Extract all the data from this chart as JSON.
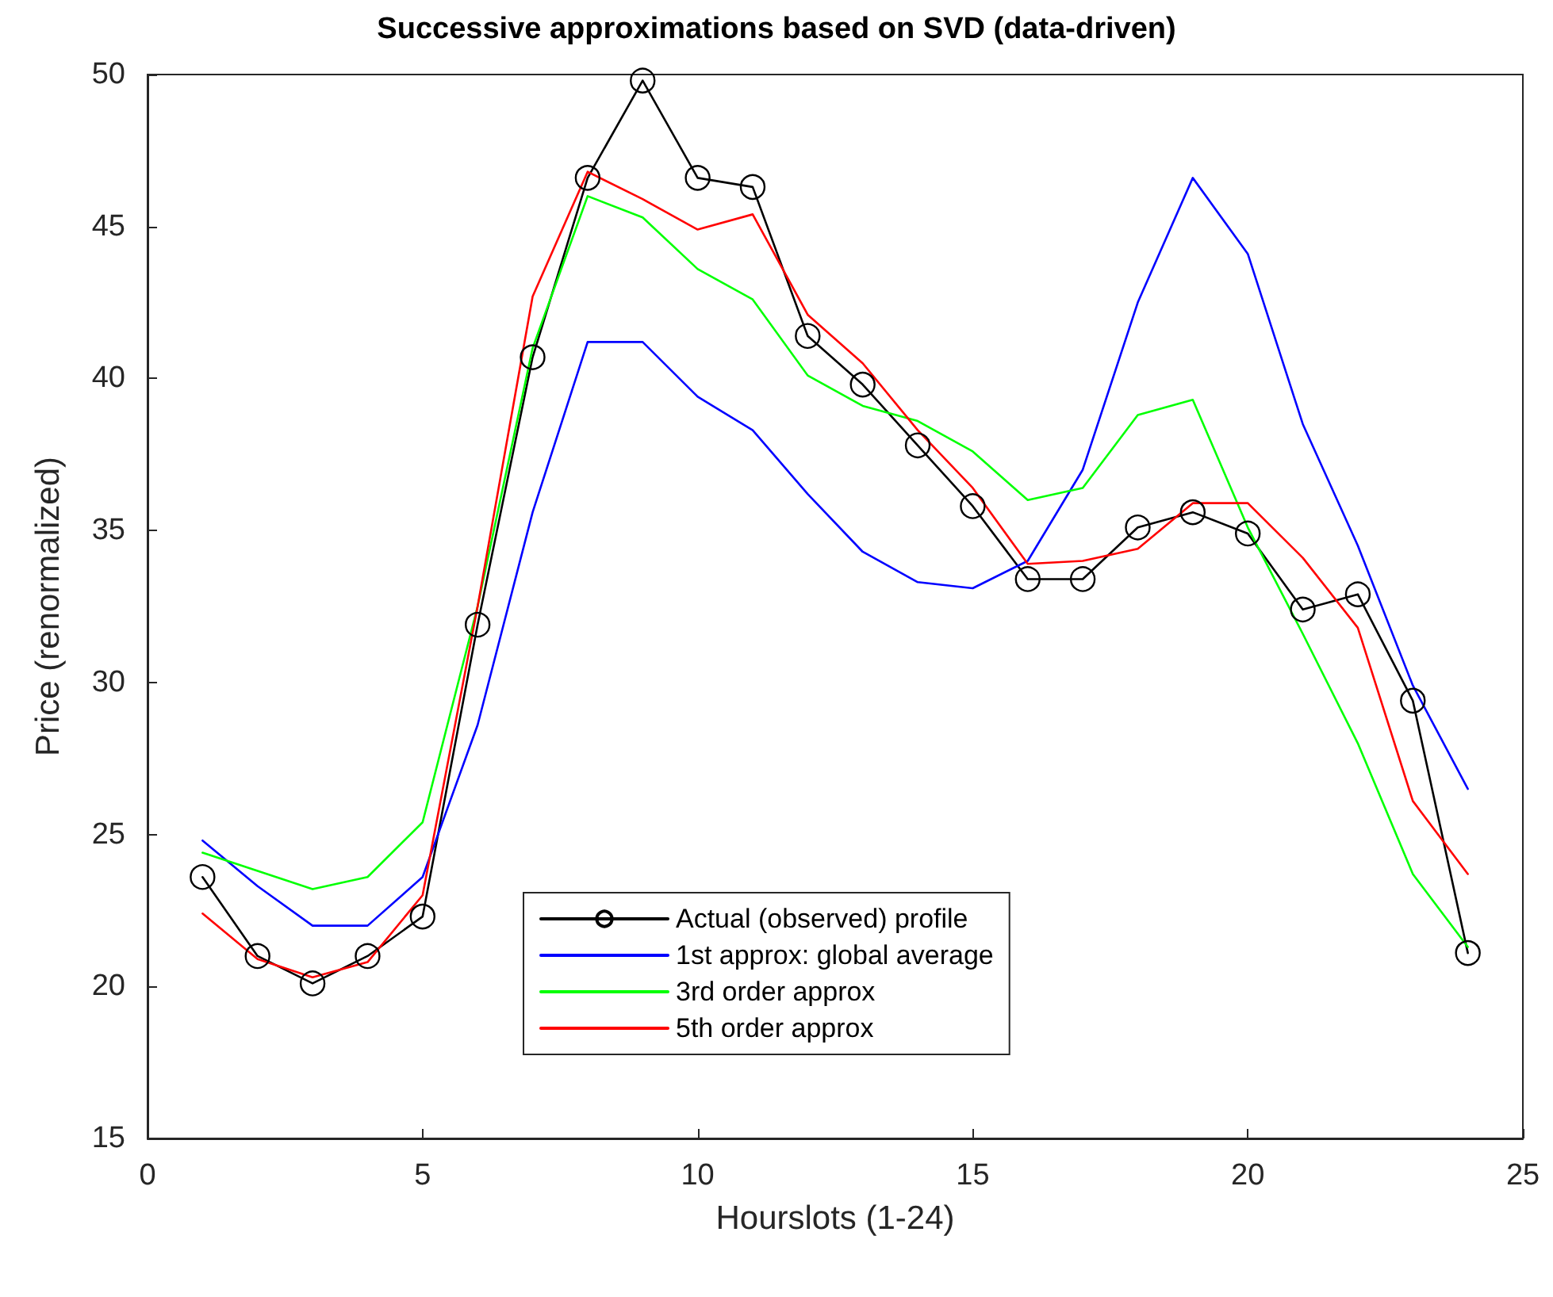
{
  "chart_data": {
    "type": "line",
    "title": "Successive approximations based on SVD (data-driven)",
    "xlabel": "Hourslots (1-24)",
    "ylabel": "Price (renormalized)",
    "x": [
      1,
      2,
      3,
      4,
      5,
      6,
      7,
      8,
      9,
      10,
      11,
      12,
      13,
      14,
      15,
      16,
      17,
      18,
      19,
      20,
      21,
      22,
      23,
      24
    ],
    "series": [
      {
        "name": "Actual (observed) profile",
        "color": "#000000",
        "marker": "circle",
        "values": [
          23.6,
          21.0,
          20.1,
          21.0,
          22.3,
          31.9,
          40.7,
          46.6,
          49.8,
          46.6,
          46.3,
          41.4,
          39.8,
          37.8,
          35.8,
          33.4,
          33.4,
          35.1,
          35.6,
          34.9,
          32.4,
          32.9,
          29.4,
          21.1
        ]
      },
      {
        "name": "1st approx: global average",
        "color": "#0000ff",
        "values": [
          24.8,
          23.3,
          22.0,
          22.0,
          23.6,
          28.6,
          35.6,
          41.2,
          41.2,
          39.4,
          38.3,
          36.2,
          34.3,
          33.3,
          33.1,
          34.0,
          37.0,
          42.5,
          46.6,
          44.1,
          38.5,
          34.5,
          29.9,
          26.5
        ]
      },
      {
        "name": "3rd order approx",
        "color": "#00ff00",
        "values": [
          24.4,
          23.8,
          23.2,
          23.6,
          25.4,
          32.5,
          41.0,
          46.0,
          45.3,
          43.6,
          42.6,
          40.1,
          39.1,
          38.6,
          37.6,
          36.0,
          36.4,
          38.8,
          39.3,
          35.1,
          31.6,
          28.0,
          23.7,
          21.3
        ]
      },
      {
        "name": "5th order approx",
        "color": "#ff0000",
        "values": [
          22.4,
          20.9,
          20.3,
          20.8,
          23.0,
          32.5,
          42.7,
          46.8,
          45.9,
          44.9,
          45.4,
          42.1,
          40.5,
          38.3,
          36.4,
          33.9,
          34.0,
          34.4,
          35.9,
          35.9,
          34.1,
          31.8,
          26.1,
          23.7
        ]
      }
    ],
    "xlim": [
      0,
      25
    ],
    "xticks": [
      0,
      5,
      10,
      15,
      20,
      25
    ],
    "ylim": [
      15,
      50
    ],
    "yticks": [
      15,
      20,
      25,
      30,
      35,
      40,
      45,
      50
    ],
    "grid": false,
    "legend": "bottom",
    "marker": "none",
    "line_style": "solid"
  }
}
